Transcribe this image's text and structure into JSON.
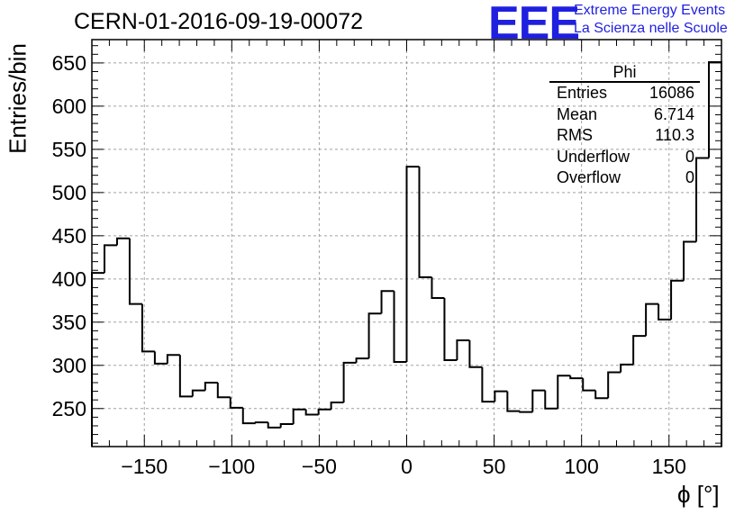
{
  "title": "CERN-01-2016-09-19-00072",
  "logo": {
    "mark": "EEE",
    "line1": "Extreme Energy Events",
    "line2": "La Scienza nelle Scuole",
    "color": "#1f1fe0"
  },
  "stats": {
    "name": "Phi",
    "rows": [
      {
        "label": "Entries",
        "value": "16086"
      },
      {
        "label": "Mean",
        "value": "6.714"
      },
      {
        "label": "RMS",
        "value": "110.3"
      },
      {
        "label": "Underflow",
        "value": "0"
      },
      {
        "label": "Overflow",
        "value": "0"
      }
    ]
  },
  "chart_data": {
    "type": "histogram",
    "title": "CERN-01-2016-09-19-00072",
    "xlabel": "ϕ [°]",
    "ylabel": "Entries/bin",
    "xlim": [
      -180,
      180
    ],
    "ylim": [
      206,
      677
    ],
    "grid": true,
    "bin_edges_start": -180,
    "bin_width": 7.2,
    "values": [
      407,
      439,
      447,
      371,
      316,
      302,
      312,
      264,
      271,
      280,
      263,
      251,
      233,
      234,
      228,
      232,
      249,
      243,
      249,
      257,
      303,
      308,
      360,
      386,
      304,
      530,
      402,
      378,
      306,
      329,
      298,
      258,
      270,
      247,
      246,
      271,
      250,
      288,
      285,
      271,
      262,
      292,
      301,
      334,
      371,
      353,
      398,
      443,
      540,
      651
    ],
    "x_ticks": [
      -150,
      -100,
      -50,
      0,
      50,
      100,
      150
    ],
    "x_tick_labels": [
      "−150",
      "−100",
      "−50",
      "0",
      "50",
      "100",
      "150"
    ],
    "y_ticks": [
      250,
      300,
      350,
      400,
      450,
      500,
      550,
      600,
      650
    ],
    "y_tick_labels": [
      "250",
      "300",
      "350",
      "400",
      "450",
      "500",
      "550",
      "600",
      "650"
    ]
  }
}
